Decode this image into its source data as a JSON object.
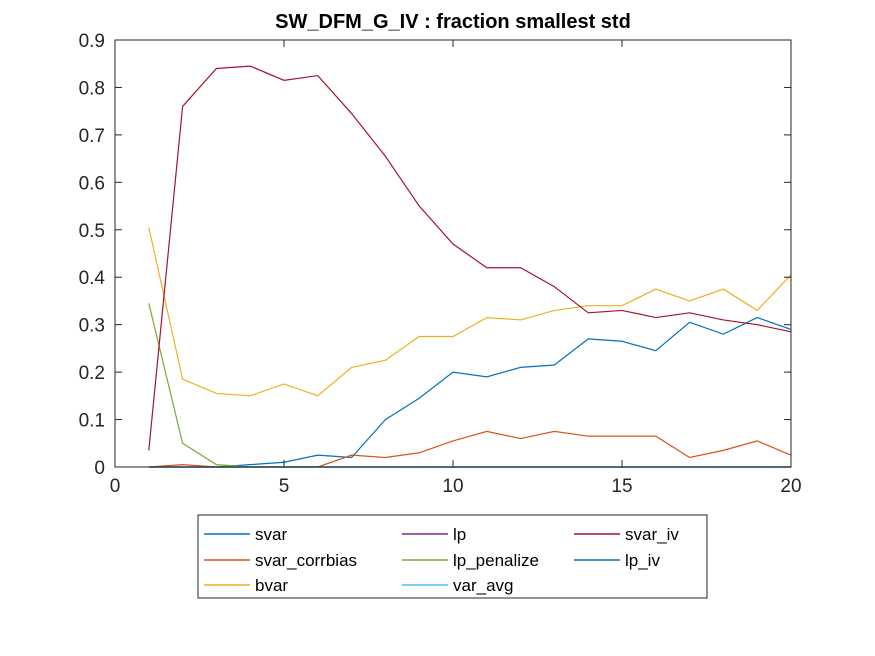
{
  "chart_data": {
    "type": "line",
    "title": "SW_DFM_G_IV : fraction smallest std",
    "xlabel": "",
    "ylabel": "",
    "xlim": [
      0,
      20
    ],
    "ylim": [
      0,
      0.9
    ],
    "xticks": [
      0,
      5,
      10,
      15,
      20
    ],
    "yticks": [
      0,
      0.1,
      0.2,
      0.3,
      0.4,
      0.5,
      0.6,
      0.7,
      0.8,
      0.9
    ],
    "xtick_labels": [
      "0",
      "5",
      "10",
      "15",
      "20"
    ],
    "ytick_labels": [
      "0",
      "0.1",
      "0.2",
      "0.3",
      "0.4",
      "0.5",
      "0.6",
      "0.7",
      "0.8",
      "0.9"
    ],
    "grid": false,
    "legend_position": "below",
    "x": [
      1,
      2,
      3,
      4,
      5,
      6,
      7,
      8,
      9,
      10,
      11,
      12,
      13,
      14,
      15,
      16,
      17,
      18,
      19,
      20
    ],
    "series": [
      {
        "name": "svar",
        "color": "#0072BD",
        "values": [
          0,
          0,
          0,
          0.005,
          0.01,
          0.025,
          0.02,
          0.1,
          0.145,
          0.2,
          0.19,
          0.21,
          0.215,
          0.27,
          0.265,
          0.245,
          0.305,
          0.28,
          0.315,
          0.29
        ]
      },
      {
        "name": "svar_corrbias",
        "color": "#D95319",
        "values": [
          0,
          0.005,
          0,
          0,
          0,
          0,
          0.025,
          0.02,
          0.03,
          0.055,
          0.075,
          0.06,
          0.075,
          0.065,
          0.065,
          0.065,
          0.02,
          0.035,
          0.055,
          0.025
        ]
      },
      {
        "name": "bvar",
        "color": "#EDB120",
        "values": [
          0.505,
          0.185,
          0.155,
          0.15,
          0.175,
          0.15,
          0.21,
          0.225,
          0.275,
          0.275,
          0.315,
          0.31,
          0.33,
          0.34,
          0.34,
          0.375,
          0.35,
          0.375,
          0.33,
          0.405
        ]
      },
      {
        "name": "lp",
        "color": "#7E2F8E",
        "values": [
          0,
          0,
          0,
          0,
          0,
          0,
          0,
          0,
          0,
          0,
          0,
          0,
          0,
          0,
          0,
          0,
          0,
          0,
          0,
          0
        ]
      },
      {
        "name": "lp_penalize",
        "color": "#77AC30",
        "values": [
          0.345,
          0.05,
          0.005,
          0,
          0,
          0,
          0,
          0,
          0,
          0,
          0,
          0,
          0,
          0,
          0,
          0,
          0,
          0,
          0,
          0
        ]
      },
      {
        "name": "var_avg",
        "color": "#4DBEEE",
        "values": [
          0,
          0,
          0,
          0,
          0,
          0,
          0,
          0,
          0,
          0,
          0,
          0,
          0,
          0,
          0,
          0,
          0,
          0,
          0,
          0
        ]
      },
      {
        "name": "svar_iv",
        "color": "#A2142F",
        "values": [
          0.035,
          0.76,
          0.84,
          0.845,
          0.815,
          0.825,
          0.745,
          0.655,
          0.55,
          0.47,
          0.42,
          0.42,
          0.38,
          0.325,
          0.33,
          0.315,
          0.325,
          0.31,
          0.3,
          0.285
        ]
      },
      {
        "name": "lp_iv",
        "color": "#0072BD",
        "values": [
          0,
          0,
          0,
          0,
          0,
          0,
          0,
          0,
          0,
          0,
          0,
          0,
          0,
          0,
          0,
          0,
          0,
          0,
          0,
          0
        ]
      }
    ]
  }
}
